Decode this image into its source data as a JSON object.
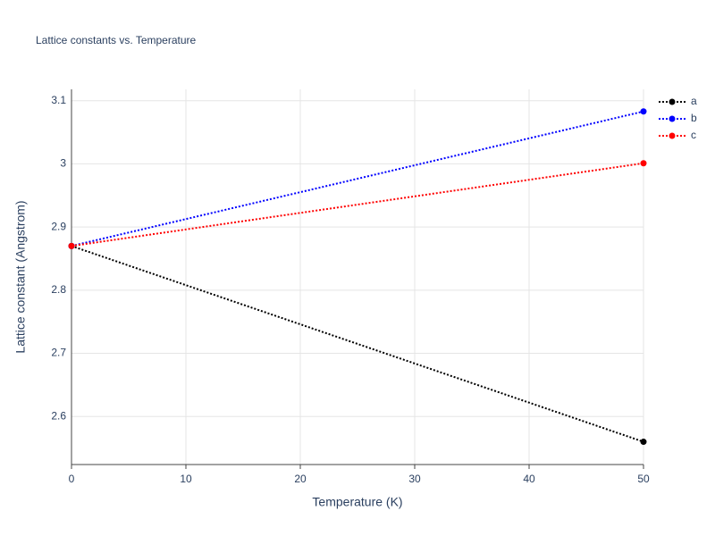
{
  "chart_data": {
    "type": "line",
    "title": "Lattice constants vs. Temperature",
    "x_label": "Temperature (K)",
    "y_label": "Lattice constant (Angstrom)",
    "x": [
      0,
      50
    ],
    "series": [
      {
        "name": "a",
        "color": "#000000",
        "values": [
          2.87,
          2.56
        ]
      },
      {
        "name": "b",
        "color": "#0000ff",
        "values": [
          2.87,
          3.083
        ]
      },
      {
        "name": "c",
        "color": "#ff0000",
        "values": [
          2.87,
          3.001
        ]
      }
    ],
    "xlim": [
      0,
      50
    ],
    "xticks": [
      0,
      10,
      20,
      30,
      40,
      50
    ],
    "ylim": [
      2.524,
      3.118
    ],
    "yticks": [
      2.6,
      2.7,
      2.8,
      2.9,
      3,
      3.1
    ],
    "grid": true,
    "legend": "top-right"
  }
}
